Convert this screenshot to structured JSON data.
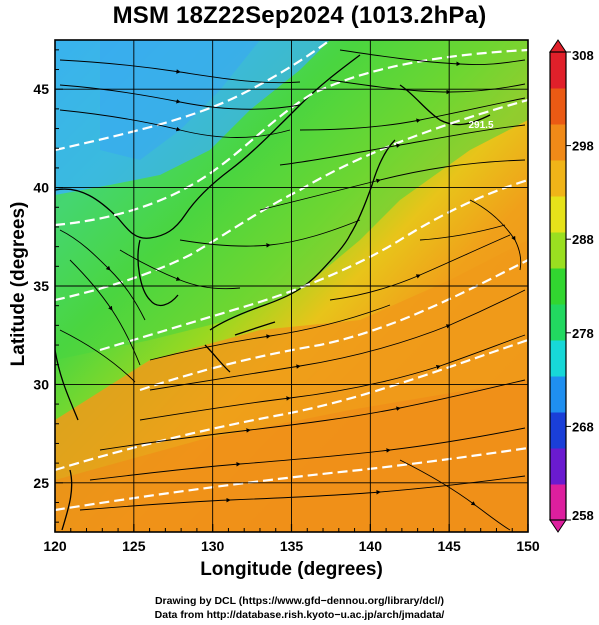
{
  "title": "MSM 18Z22Sep2024 (1013.2hPa)",
  "credits": {
    "line1": "Drawing by DCL (https://www.gfd−dennou.org/library/dcl/)",
    "line2": "Data from http://database.rish.kyoto−u.ac.jp/arch/jmadata/"
  },
  "map": {
    "xlabel": "Longitude (degrees)",
    "ylabel": "Latitude  (degrees)",
    "lon_range": [
      120,
      150
    ],
    "lat_range": [
      22.5,
      47.5
    ],
    "lon_ticks": [
      "120",
      "125",
      "130",
      "135",
      "140",
      "145",
      "150"
    ],
    "lat_ticks": [
      "25",
      "30",
      "35",
      "40",
      "45"
    ],
    "contour_label": "291.5"
  },
  "colorbar": {
    "min": 258,
    "max": 308,
    "tick_labels": [
      "308",
      "298",
      "288",
      "278",
      "268",
      "258"
    ],
    "colors": [
      "#dd1f9e",
      "#6a1bd0",
      "#1a3fd8",
      "#1f8ff0",
      "#17d8d8",
      "#22d860",
      "#32d630",
      "#9adf20",
      "#e6e21a",
      "#f0b418",
      "#f08a18",
      "#ea5a14",
      "#e0202a"
    ]
  }
}
